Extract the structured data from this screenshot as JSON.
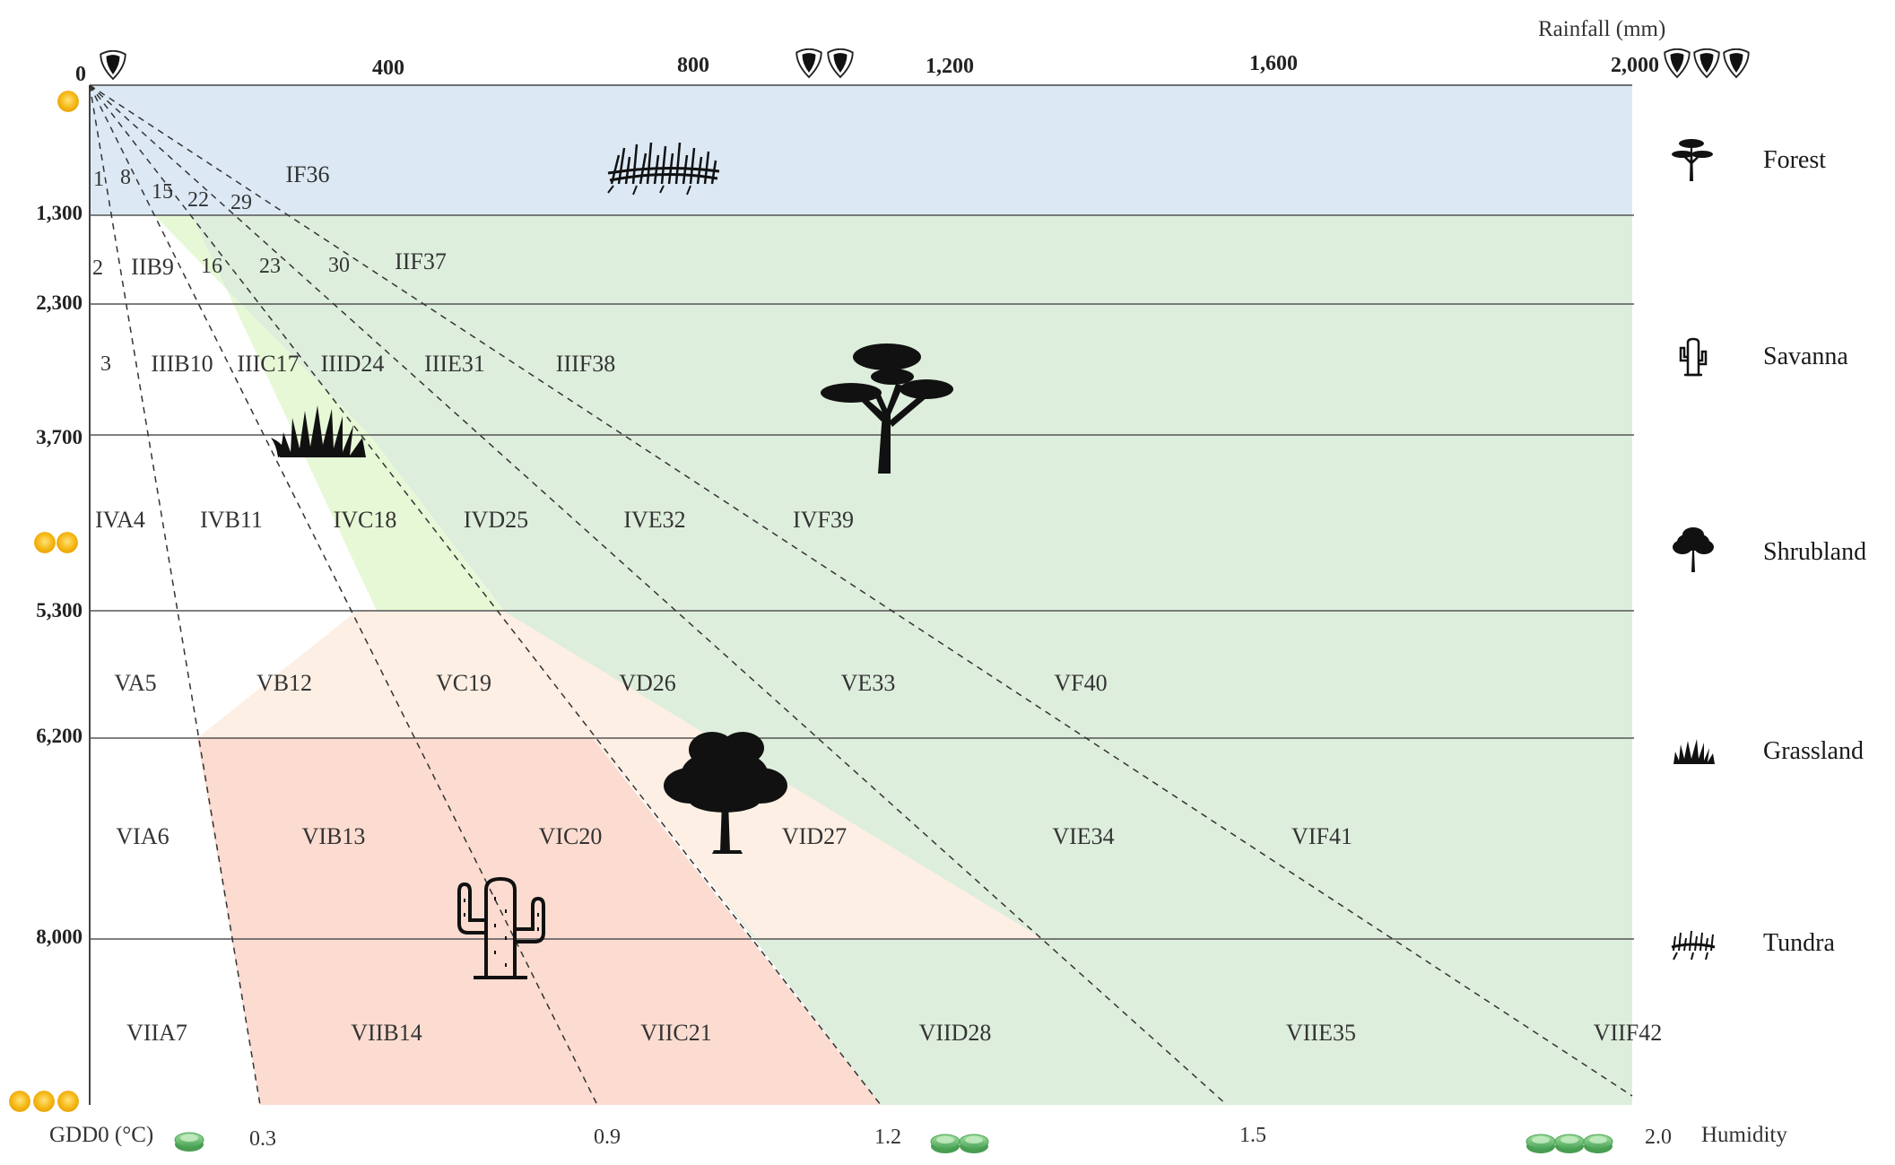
{
  "rainfall_title": "Rainfall (mm)",
  "rainfall_ticks": [
    {
      "value": 0,
      "label": "0"
    },
    {
      "value": 400,
      "label": "400"
    },
    {
      "value": 800,
      "label": "800"
    },
    {
      "value": 1200,
      "label": "1,200"
    },
    {
      "value": 1600,
      "label": "1,600"
    },
    {
      "value": 2000,
      "label": "2,000"
    }
  ],
  "gdd_title": "GDD0 (°C)",
  "gdd_ticks": [
    "1,300",
    "2,300",
    "3,700",
    "5,300",
    "6,200",
    "8,000"
  ],
  "humidity_title": "Humidity",
  "humidity_ticks": [
    "0.3",
    "0.9",
    "1.2",
    "1.5",
    "2.0"
  ],
  "zones": [
    [
      "IF36"
    ],
    [
      "IIB9",
      "IIF37"
    ],
    [
      "IIIB10",
      "IIIC17",
      "IIID24",
      "IIIE31",
      "IIIF38"
    ],
    [
      "IVA4",
      "IVB11",
      "IVC18",
      "IVD25",
      "IVE32",
      "IVF39"
    ],
    [
      "VA5",
      "VB12",
      "VC19",
      "VD26",
      "VE33",
      "VF40"
    ],
    [
      "VIA6",
      "VIB13",
      "VIC20",
      "VID27",
      "VIE34",
      "VIF41"
    ],
    [
      "VIIA7",
      "VIIB14",
      "VIIC21",
      "VIID28",
      "VIIE35",
      "VIIF42"
    ]
  ],
  "small_numbers": [
    "1",
    "8",
    "15",
    "22",
    "29",
    "2",
    "16",
    "23",
    "30",
    "3"
  ],
  "legend": [
    {
      "label": "Forest",
      "icon": "forest-icon"
    },
    {
      "label": "Savanna",
      "icon": "cactus-icon"
    },
    {
      "label": "Shrubland",
      "icon": "shrub-tree-icon"
    },
    {
      "label": "Grassland",
      "icon": "grass-icon"
    },
    {
      "label": "Tundra",
      "icon": "tundra-icon"
    }
  ],
  "colors": {
    "forest": "#dce9f5",
    "savanna_green": "#deeedd",
    "grassland": "#e7f8d6",
    "shrubland": "#fdefe4",
    "desert": "#fcdcd0",
    "sun": "#f5b400",
    "humidity": "#6fbf72"
  }
}
